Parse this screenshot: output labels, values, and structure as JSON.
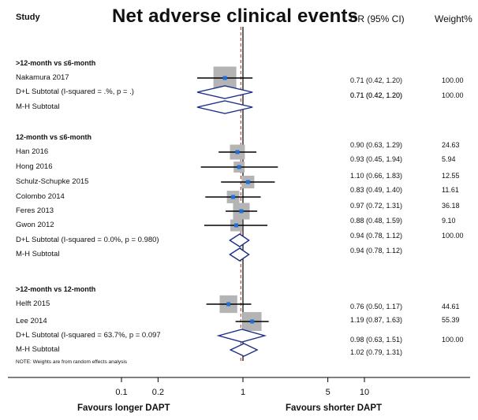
{
  "header": {
    "study": "Study",
    "title": "Net adverse clinical events",
    "ci": "OR (95% CI)",
    "weight": "Weight%"
  },
  "chart_data": {
    "type": "forest",
    "x_scale": "log",
    "xlim": [
      0.03,
      30
    ],
    "ticks": [
      "0.1",
      "0.2",
      "1",
      "5",
      "10"
    ],
    "null_value": 1,
    "pooled_line_value": 0.96,
    "left_label": "Favours longer DAPT",
    "right_label": "Favours shorter DAPT",
    "rows": [
      {
        "label": ">12-month vs ≤6-month",
        "kind": "group"
      },
      {
        "label": "Nakamura 2017",
        "kind": "study",
        "or": 0.71,
        "lo": 0.42,
        "hi": 1.2,
        "ci_text": "0.71 (0.42, 1.20)",
        "weight": "100.00",
        "w": 100
      },
      {
        "label": "D+L Subtotal  (I-squared = .%, p = .)",
        "kind": "pooled",
        "or": 0.71,
        "lo": 0.42,
        "hi": 1.2,
        "ci_text": "0.71 (0.42, 1.20)",
        "weight": "100.00"
      },
      {
        "label": "M-H Subtotal",
        "kind": "pooled",
        "or": 0.71,
        "lo": 0.42,
        "hi": 1.2,
        "ci_text": "0.71 (0.42, 1.20)",
        "weight": ""
      },
      {
        "label": "",
        "kind": "blank"
      },
      {
        "label": "12-month vs ≤6-month",
        "kind": "group"
      },
      {
        "label": "Han 2016",
        "kind": "study",
        "or": 0.9,
        "lo": 0.63,
        "hi": 1.29,
        "ci_text": "0.90 (0.63, 1.29)",
        "weight": "24.63",
        "w": 24.63
      },
      {
        "label": "Hong 2016",
        "kind": "study",
        "or": 0.93,
        "lo": 0.45,
        "hi": 1.94,
        "ci_text": "0.93 (0.45, 1.94)",
        "weight": "5.94",
        "w": 5.94
      },
      {
        "label": "Schulz-Schupke 2015",
        "kind": "study",
        "or": 1.1,
        "lo": 0.66,
        "hi": 1.83,
        "ci_text": "1.10 (0.66, 1.83)",
        "weight": "12.55",
        "w": 12.55
      },
      {
        "label": "Colombo 2014",
        "kind": "study",
        "or": 0.83,
        "lo": 0.49,
        "hi": 1.4,
        "ci_text": "0.83 (0.49, 1.40)",
        "weight": "11.61",
        "w": 11.61
      },
      {
        "label": "Feres 2013",
        "kind": "study",
        "or": 0.97,
        "lo": 0.72,
        "hi": 1.31,
        "ci_text": "0.97 (0.72, 1.31)",
        "weight": "36.18",
        "w": 36.18
      },
      {
        "label": "Gwon 2012",
        "kind": "study",
        "or": 0.88,
        "lo": 0.48,
        "hi": 1.59,
        "ci_text": "0.88 (0.48, 1.59)",
        "weight": "9.10",
        "w": 9.1
      },
      {
        "label": "D+L Subtotal  (I-squared = 0.0%, p = 0.980)",
        "kind": "pooled",
        "or": 0.94,
        "lo": 0.78,
        "hi": 1.12,
        "ci_text": "0.94 (0.78, 1.12)",
        "weight": "100.00"
      },
      {
        "label": "M-H Subtotal",
        "kind": "pooled",
        "or": 0.94,
        "lo": 0.78,
        "hi": 1.12,
        "ci_text": "0.94 (0.78, 1.12)",
        "weight": ""
      },
      {
        "label": "",
        "kind": "blank"
      },
      {
        "label": ">12-month vs 12-month",
        "kind": "group"
      },
      {
        "label": "Helft 2015",
        "kind": "study",
        "or": 0.76,
        "lo": 0.5,
        "hi": 1.17,
        "ci_text": "0.76 (0.50, 1.17)",
        "weight": "44.61",
        "w": 44.61
      },
      {
        "label": "Lee 2014",
        "kind": "study",
        "or": 1.19,
        "lo": 0.87,
        "hi": 1.63,
        "ci_text": "1.19 (0.87, 1.63)",
        "weight": "55.39",
        "w": 55.39
      },
      {
        "label": "D+L Subtotal  (I-squared = 63.7%, p = 0.097",
        "kind": "pooled",
        "or": 0.98,
        "lo": 0.63,
        "hi": 1.51,
        "ci_text": "0.98 (0.63, 1.51)",
        "weight": "100.00"
      },
      {
        "label": "M-H Subtotal",
        "kind": "pooled",
        "or": 1.02,
        "lo": 0.79,
        "hi": 1.31,
        "ci_text": "1.02 (0.79, 1.31)",
        "weight": ""
      },
      {
        "label": "NOTE: Weights are from random effects analysis",
        "kind": "note"
      }
    ]
  }
}
